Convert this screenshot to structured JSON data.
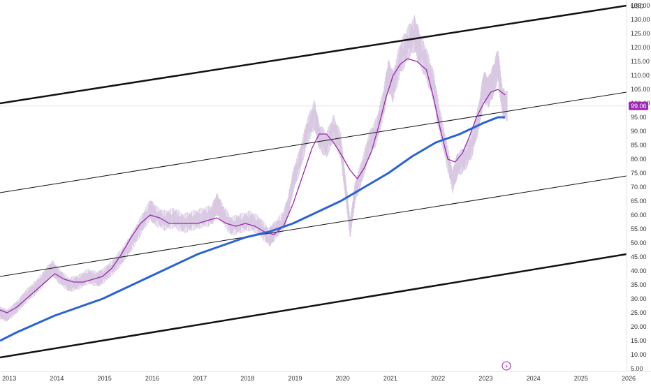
{
  "chart_data": {
    "type": "line",
    "currency": "USD",
    "last_price_label": "99.06",
    "last_price": 99.06,
    "x_range": [
      2012.85,
      2026.0
    ],
    "y_range": [
      4.0,
      137.0
    ],
    "x_ticks": [
      {
        "label": "2013",
        "value": 2013
      },
      {
        "label": "2014",
        "value": 2014
      },
      {
        "label": "2015",
        "value": 2015
      },
      {
        "label": "2016",
        "value": 2016
      },
      {
        "label": "2017",
        "value": 2017
      },
      {
        "label": "2018",
        "value": 2018
      },
      {
        "label": "2019",
        "value": 2019
      },
      {
        "label": "2020",
        "value": 2020
      },
      {
        "label": "2021",
        "value": 2021
      },
      {
        "label": "2022",
        "value": 2022
      },
      {
        "label": "2023",
        "value": 2023
      },
      {
        "label": "2024",
        "value": 2024
      },
      {
        "label": "2025",
        "value": 2025
      },
      {
        "label": "2026",
        "value": 2026
      }
    ],
    "y_ticks": [
      {
        "label": "135.00",
        "value": 135
      },
      {
        "label": "130.00",
        "value": 130
      },
      {
        "label": "125.00",
        "value": 125
      },
      {
        "label": "120.00",
        "value": 120
      },
      {
        "label": "115.00",
        "value": 115
      },
      {
        "label": "110.00",
        "value": 110
      },
      {
        "label": "105.00",
        "value": 105
      },
      {
        "label": "100.00",
        "value": 100
      },
      {
        "label": "95.00",
        "value": 95
      },
      {
        "label": "90.00",
        "value": 90
      },
      {
        "label": "85.00",
        "value": 85
      },
      {
        "label": "80.00",
        "value": 80
      },
      {
        "label": "75.00",
        "value": 75
      },
      {
        "label": "70.00",
        "value": 70
      },
      {
        "label": "65.00",
        "value": 65
      },
      {
        "label": "60.00",
        "value": 60
      },
      {
        "label": "55.00",
        "value": 55
      },
      {
        "label": "50.00",
        "value": 50
      },
      {
        "label": "45.00",
        "value": 45
      },
      {
        "label": "40.00",
        "value": 40
      },
      {
        "label": "35.00",
        "value": 35
      },
      {
        "label": "30.00",
        "value": 30
      },
      {
        "label": "25.00",
        "value": 25
      },
      {
        "label": "20.00",
        "value": 20
      },
      {
        "label": "15.00",
        "value": 15
      },
      {
        "label": "10.00",
        "value": 10
      },
      {
        "label": "5.00",
        "value": 5
      }
    ],
    "series": [
      {
        "role": "price",
        "color": "#d8c8e2",
        "points": [
          [
            2012.85,
            25
          ],
          [
            2013.0,
            24
          ],
          [
            2013.2,
            27
          ],
          [
            2013.4,
            31
          ],
          [
            2013.6,
            34
          ],
          [
            2013.8,
            38
          ],
          [
            2013.95,
            41
          ],
          [
            2014.1,
            38
          ],
          [
            2014.3,
            35
          ],
          [
            2014.5,
            36
          ],
          [
            2014.7,
            38
          ],
          [
            2014.9,
            37
          ],
          [
            2015.0,
            38
          ],
          [
            2015.2,
            41
          ],
          [
            2015.4,
            45
          ],
          [
            2015.6,
            50
          ],
          [
            2015.8,
            56
          ],
          [
            2016.0,
            62
          ],
          [
            2016.1,
            60
          ],
          [
            2016.3,
            58
          ],
          [
            2016.5,
            59
          ],
          [
            2016.7,
            57
          ],
          [
            2016.9,
            58
          ],
          [
            2017.1,
            59
          ],
          [
            2017.3,
            60
          ],
          [
            2017.4,
            64
          ],
          [
            2017.5,
            61
          ],
          [
            2017.7,
            56
          ],
          [
            2017.9,
            57
          ],
          [
            2018.1,
            58
          ],
          [
            2018.3,
            56
          ],
          [
            2018.5,
            52
          ],
          [
            2018.6,
            54
          ],
          [
            2018.8,
            58
          ],
          [
            2018.9,
            63
          ],
          [
            2019.0,
            72
          ],
          [
            2019.15,
            80
          ],
          [
            2019.3,
            90
          ],
          [
            2019.45,
            96
          ],
          [
            2019.55,
            88
          ],
          [
            2019.7,
            85
          ],
          [
            2019.85,
            91
          ],
          [
            2020.0,
            85
          ],
          [
            2020.1,
            70
          ],
          [
            2020.2,
            55
          ],
          [
            2020.3,
            68
          ],
          [
            2020.45,
            76
          ],
          [
            2020.6,
            85
          ],
          [
            2020.75,
            90
          ],
          [
            2020.9,
            100
          ],
          [
            2021.0,
            110
          ],
          [
            2021.1,
            106
          ],
          [
            2021.25,
            116
          ],
          [
            2021.4,
            121
          ],
          [
            2021.55,
            125
          ],
          [
            2021.65,
            120
          ],
          [
            2021.8,
            114
          ],
          [
            2021.95,
            106
          ],
          [
            2022.05,
            96
          ],
          [
            2022.2,
            84
          ],
          [
            2022.35,
            72
          ],
          [
            2022.45,
            78
          ],
          [
            2022.6,
            80
          ],
          [
            2022.75,
            85
          ],
          [
            2022.9,
            95
          ],
          [
            2023.0,
            106
          ],
          [
            2023.1,
            104
          ],
          [
            2023.2,
            108
          ],
          [
            2023.3,
            114
          ],
          [
            2023.4,
            100
          ],
          [
            2023.5,
            99
          ]
        ]
      },
      {
        "role": "short-ma",
        "color": "#9c27b0",
        "points": [
          [
            2012.85,
            26
          ],
          [
            2013.0,
            25
          ],
          [
            2013.2,
            27
          ],
          [
            2013.4,
            30
          ],
          [
            2013.6,
            33
          ],
          [
            2013.8,
            36
          ],
          [
            2014.0,
            39
          ],
          [
            2014.2,
            37
          ],
          [
            2014.4,
            36
          ],
          [
            2014.6,
            36
          ],
          [
            2014.8,
            37
          ],
          [
            2015.0,
            38
          ],
          [
            2015.2,
            41
          ],
          [
            2015.4,
            46
          ],
          [
            2015.6,
            52
          ],
          [
            2015.8,
            57
          ],
          [
            2016.0,
            60
          ],
          [
            2016.2,
            59
          ],
          [
            2016.4,
            57
          ],
          [
            2016.6,
            57
          ],
          [
            2016.8,
            57
          ],
          [
            2017.0,
            57
          ],
          [
            2017.2,
            58
          ],
          [
            2017.4,
            59
          ],
          [
            2017.6,
            57
          ],
          [
            2017.8,
            56
          ],
          [
            2018.0,
            57
          ],
          [
            2018.2,
            56
          ],
          [
            2018.4,
            54
          ],
          [
            2018.6,
            53
          ],
          [
            2018.8,
            56
          ],
          [
            2019.0,
            64
          ],
          [
            2019.2,
            74
          ],
          [
            2019.4,
            84
          ],
          [
            2019.55,
            89
          ],
          [
            2019.7,
            89
          ],
          [
            2019.85,
            86
          ],
          [
            2020.0,
            82
          ],
          [
            2020.2,
            76
          ],
          [
            2020.35,
            73
          ],
          [
            2020.5,
            77
          ],
          [
            2020.65,
            83
          ],
          [
            2020.8,
            92
          ],
          [
            2020.95,
            102
          ],
          [
            2021.1,
            110
          ],
          [
            2021.25,
            114
          ],
          [
            2021.4,
            116
          ],
          [
            2021.6,
            115
          ],
          [
            2021.8,
            112
          ],
          [
            2021.95,
            102
          ],
          [
            2022.1,
            90
          ],
          [
            2022.25,
            80
          ],
          [
            2022.4,
            79
          ],
          [
            2022.55,
            82
          ],
          [
            2022.7,
            88
          ],
          [
            2022.85,
            95
          ],
          [
            2023.0,
            100
          ],
          [
            2023.15,
            104
          ],
          [
            2023.3,
            105
          ],
          [
            2023.45,
            103
          ]
        ]
      },
      {
        "role": "long-ma",
        "color": "#2962d9",
        "points": [
          [
            2012.85,
            15
          ],
          [
            2013.2,
            18
          ],
          [
            2013.6,
            21
          ],
          [
            2014.0,
            24
          ],
          [
            2014.5,
            27
          ],
          [
            2015.0,
            30
          ],
          [
            2015.5,
            34
          ],
          [
            2016.0,
            38
          ],
          [
            2016.5,
            42
          ],
          [
            2017.0,
            46
          ],
          [
            2017.5,
            49
          ],
          [
            2018.0,
            52
          ],
          [
            2018.5,
            54
          ],
          [
            2019.0,
            57
          ],
          [
            2019.5,
            61
          ],
          [
            2020.0,
            65
          ],
          [
            2020.5,
            70
          ],
          [
            2021.0,
            75
          ],
          [
            2021.5,
            81
          ],
          [
            2022.0,
            86
          ],
          [
            2022.5,
            89
          ],
          [
            2023.0,
            93
          ],
          [
            2023.3,
            95
          ],
          [
            2023.45,
            95
          ]
        ]
      }
    ],
    "trend_lines": [
      {
        "role": "channel-upper",
        "color": "#111111",
        "width": 2.5,
        "from": [
          2012.85,
          100
        ],
        "to": [
          2026.0,
          135
        ]
      },
      {
        "role": "channel-mid-upper",
        "color": "#111111",
        "width": 1,
        "from": [
          2012.85,
          68
        ],
        "to": [
          2026.0,
          104
        ]
      },
      {
        "role": "channel-mid-lower",
        "color": "#111111",
        "width": 1,
        "from": [
          2012.85,
          38
        ],
        "to": [
          2026.0,
          74
        ]
      },
      {
        "role": "channel-lower",
        "color": "#111111",
        "width": 2.5,
        "from": [
          2012.85,
          9
        ],
        "to": [
          2026.0,
          46
        ]
      }
    ],
    "grid": false
  }
}
